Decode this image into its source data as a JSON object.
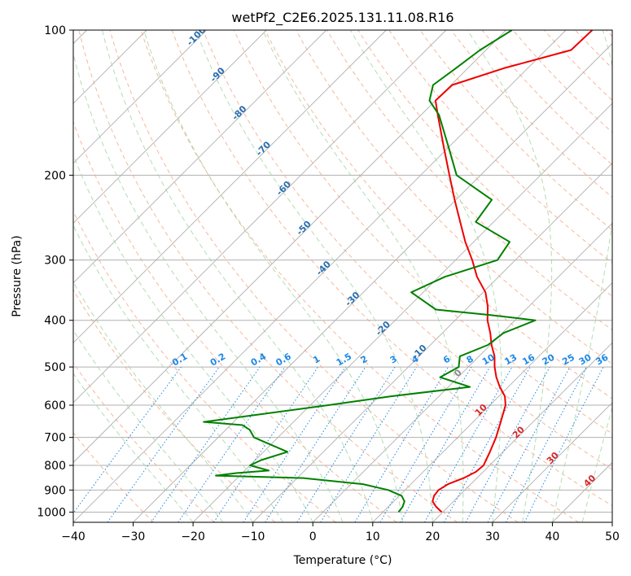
{
  "chart_data": {
    "type": "line",
    "title": "wetPf2_C2E6.2025.131.11.08.R16",
    "xlabel": "Temperature (°C)",
    "ylabel": "Pressure (hPa)",
    "xlim": [
      -40,
      50
    ],
    "ylim": [
      1050,
      100
    ],
    "y_scale": "log",
    "skew": true,
    "grid": true,
    "x_ticks": [
      -40,
      -30,
      -20,
      -10,
      0,
      10,
      20,
      30,
      40,
      50
    ],
    "y_ticks": [
      100,
      200,
      300,
      400,
      500,
      600,
      700,
      800,
      900,
      1000
    ],
    "dry_adiabat_labels": [
      "-100",
      "-90",
      "-80",
      "-70",
      "-60",
      "-50",
      "-40",
      "-30",
      "-20",
      "-10"
    ],
    "mixing_ratio_labels": [
      "0.1",
      "0.2",
      "0.4",
      "0.6",
      "1",
      "1.5",
      "2",
      "3",
      "4",
      "6",
      "8",
      "10",
      "13",
      "16",
      "20",
      "25",
      "30",
      "36"
    ],
    "wet_adiabat_labels": [
      "0",
      "10",
      "20",
      "30",
      "40"
    ],
    "colors": {
      "temperature": "#ee0000",
      "dewpoint": "#008000",
      "isotherm": "#b0b0b0",
      "dry_adiabat": "#f4a582",
      "moist_adiabat": "#9fd49f",
      "mixing_ratio": "#1e88e5",
      "adiabat_label": "#2a6fb0",
      "wet_label": "#d62728",
      "grid": "#b0b0b0"
    },
    "series": [
      {
        "name": "temperature",
        "points": [
          [
            1000,
            19.8
          ],
          [
            975,
            18.0
          ],
          [
            950,
            16.5
          ],
          [
            925,
            15.8
          ],
          [
            900,
            15.6
          ],
          [
            875,
            16.2
          ],
          [
            850,
            17.8
          ],
          [
            825,
            18.8
          ],
          [
            800,
            19.0
          ],
          [
            775,
            18.4
          ],
          [
            750,
            17.8
          ],
          [
            700,
            16.4
          ],
          [
            650,
            14.6
          ],
          [
            600,
            12.6
          ],
          [
            575,
            11.0
          ],
          [
            550,
            8.6
          ],
          [
            525,
            6.4
          ],
          [
            500,
            4.4
          ],
          [
            475,
            2.6
          ],
          [
            450,
            0.2
          ],
          [
            425,
            -2.0
          ],
          [
            400,
            -4.6
          ],
          [
            375,
            -6.8
          ],
          [
            350,
            -9.6
          ],
          [
            325,
            -13.6
          ],
          [
            300,
            -17.2
          ],
          [
            275,
            -21.4
          ],
          [
            250,
            -25.6
          ],
          [
            225,
            -30.2
          ],
          [
            200,
            -35.2
          ],
          [
            175,
            -40.8
          ],
          [
            150,
            -47.2
          ],
          [
            140,
            -50.0
          ],
          [
            130,
            -49.8
          ],
          [
            120,
            -44.0
          ],
          [
            110,
            -35.8
          ],
          [
            100,
            -35.6
          ]
        ]
      },
      {
        "name": "dewpoint",
        "points": [
          [
            1000,
            12.6
          ],
          [
            975,
            12.4
          ],
          [
            950,
            11.8
          ],
          [
            925,
            10.4
          ],
          [
            900,
            7.2
          ],
          [
            875,
            2.0
          ],
          [
            850,
            -9.0
          ],
          [
            840,
            -24.0
          ],
          [
            830,
            -21.0
          ],
          [
            820,
            -16.0
          ],
          [
            800,
            -20.0
          ],
          [
            780,
            -19.0
          ],
          [
            750,
            -16.0
          ],
          [
            700,
            -24.0
          ],
          [
            675,
            -26.0
          ],
          [
            660,
            -28.0
          ],
          [
            650,
            -35.0
          ],
          [
            600,
            -17.0
          ],
          [
            575,
            -8.0
          ],
          [
            550,
            3.6
          ],
          [
            525,
            -3.0
          ],
          [
            500,
            -1.6
          ],
          [
            475,
            -3.2
          ],
          [
            450,
            -0.4
          ],
          [
            425,
            0.2
          ],
          [
            400,
            3.4
          ],
          [
            390,
            -5.0
          ],
          [
            380,
            -15.0
          ],
          [
            350,
            -22.0
          ],
          [
            325,
            -19.0
          ],
          [
            300,
            -13.0
          ],
          [
            275,
            -14.0
          ],
          [
            250,
            -23.0
          ],
          [
            225,
            -24.0
          ],
          [
            200,
            -34.0
          ],
          [
            175,
            -40.0
          ],
          [
            150,
            -47.0
          ],
          [
            140,
            -51.0
          ],
          [
            130,
            -53.0
          ],
          [
            120,
            -52.0
          ],
          [
            110,
            -51.0
          ],
          [
            100,
            -49.0
          ]
        ]
      }
    ]
  }
}
